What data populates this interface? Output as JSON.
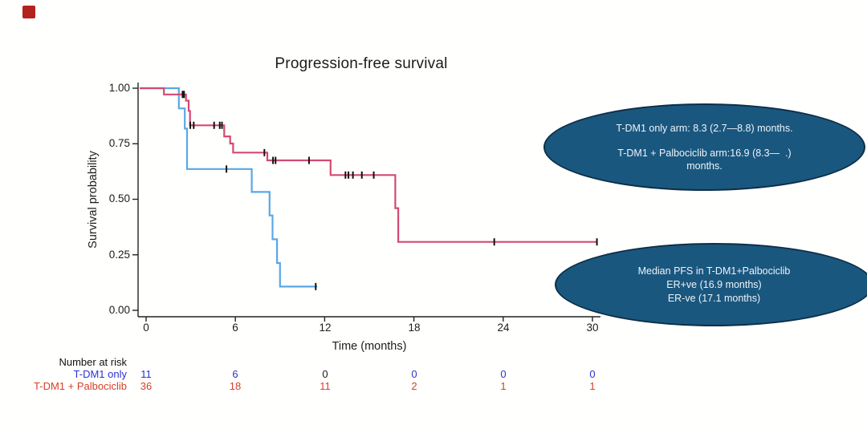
{
  "marker": {
    "color": "#b3221d"
  },
  "chart_data": {
    "type": "line",
    "subtype": "kaplan-meier-step",
    "title": "Progression-free survival",
    "xlabel": "Time (months)",
    "ylabel": "Survival probability",
    "xlim": [
      0,
      31
    ],
    "ylim": [
      0,
      1
    ],
    "grid": false,
    "x_ticks": [
      0,
      6,
      12,
      18,
      24,
      30
    ],
    "x_tick_labels": [
      "0",
      "6",
      "12",
      "18",
      "24",
      "30"
    ],
    "y_ticks": [
      1.0,
      0.75,
      0.5,
      0.25,
      0.0
    ],
    "y_tick_labels": [
      "1.00",
      "0.75",
      "0.50",
      "0.25",
      "0.00"
    ],
    "axis_color": "#222222",
    "censor_color": "#111111",
    "series": [
      {
        "name": "T-DM1 only",
        "color": "#5aa7e6",
        "points": [
          [
            0,
            1.0
          ],
          [
            2.2,
            0.909
          ],
          [
            2.6,
            0.818
          ],
          [
            2.75,
            0.636
          ],
          [
            7.1,
            0.533
          ],
          [
            8.3,
            0.427
          ],
          [
            8.5,
            0.32
          ],
          [
            8.8,
            0.213
          ],
          [
            9.0,
            0.107
          ],
          [
            11.5,
            0.107
          ]
        ],
        "censors": [
          [
            5.4,
            0.636
          ],
          [
            11.4,
            0.107
          ]
        ]
      },
      {
        "name": "T-DM1 + Palbociclib",
        "color": "#d34a70",
        "points": [
          [
            0,
            1.0
          ],
          [
            1.2,
            0.972
          ],
          [
            2.68,
            0.944
          ],
          [
            2.86,
            0.898
          ],
          [
            2.95,
            0.833
          ],
          [
            5.25,
            0.783
          ],
          [
            5.65,
            0.751
          ],
          [
            5.85,
            0.71
          ],
          [
            8.15,
            0.675
          ],
          [
            12.4,
            0.609
          ],
          [
            16.75,
            0.46
          ],
          [
            16.95,
            0.308
          ],
          [
            30.35,
            0.308
          ]
        ],
        "censors": [
          [
            2.45,
            0.972
          ],
          [
            2.55,
            0.972
          ],
          [
            2.97,
            0.833
          ],
          [
            3.2,
            0.833
          ],
          [
            4.57,
            0.833
          ],
          [
            4.95,
            0.833
          ],
          [
            5.1,
            0.833
          ],
          [
            7.95,
            0.71
          ],
          [
            8.53,
            0.675
          ],
          [
            8.7,
            0.675
          ],
          [
            10.95,
            0.675
          ],
          [
            13.4,
            0.609
          ],
          [
            13.6,
            0.609
          ],
          [
            13.9,
            0.609
          ],
          [
            14.5,
            0.609
          ],
          [
            15.3,
            0.609
          ],
          [
            23.4,
            0.308
          ],
          [
            30.3,
            0.308
          ]
        ]
      }
    ]
  },
  "annotations": [
    {
      "fill": "#1a577f",
      "border": "#0d2f47",
      "text_color": "#eef3f7",
      "lines": [
        "T-DM1 only arm: 8.3 (2.7—8.8) months.",
        "T-DM1 + Palbociclib arm:16.9 (8.3—  .)",
        "months."
      ]
    },
    {
      "fill": "#1a577f",
      "border": "#0d2f47",
      "text_color": "#eef3f7",
      "lines": [
        "Median PFS in T-DM1+Palbociclib",
        "ER+ve (16.9 months)",
        "ER-ve (17.1 months)"
      ]
    }
  ],
  "risk_table": {
    "header": "Number at risk",
    "rows": [
      {
        "label": "T-DM1 only",
        "color": "#2a32d0",
        "values": [
          "11",
          "6",
          "0",
          "0",
          "0",
          "0"
        ]
      },
      {
        "label": "T-DM1 + Palbociclib",
        "color": "#d6402a",
        "values": [
          "36",
          "18",
          "11",
          "2",
          "1",
          "1"
        ]
      }
    ]
  }
}
